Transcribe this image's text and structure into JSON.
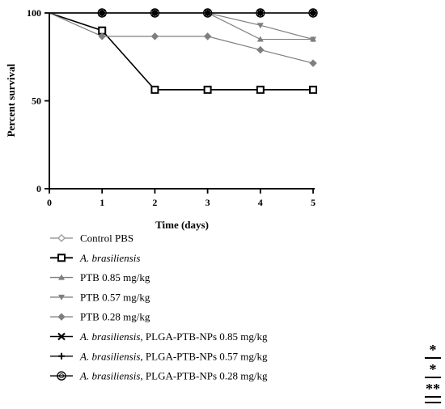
{
  "chart_data": {
    "type": "line",
    "title": "",
    "xlabel": "Time (days)",
    "ylabel": "Percent survival",
    "xlim": [
      0,
      5
    ],
    "ylim": [
      0,
      100
    ],
    "x_ticks": [
      "0",
      "1",
      "2",
      "3",
      "4",
      "5"
    ],
    "y_ticks": [
      "0",
      "50",
      "100"
    ],
    "grid": false,
    "legend_position": "bottom",
    "series": [
      {
        "name": "Control  PBS",
        "marker": "diamond-open",
        "color": "#9e9e9e",
        "x": [
          0,
          1,
          2,
          3,
          4,
          5
        ],
        "y": [
          100,
          100,
          100,
          100,
          100,
          100
        ]
      },
      {
        "name": "A. brasiliensis",
        "marker": "square-open",
        "color": "#000000",
        "x": [
          0,
          1,
          2,
          3,
          4,
          5
        ],
        "y": [
          100,
          90,
          56.3,
          56.3,
          56.3,
          56.3
        ]
      },
      {
        "name": "PTB 0.85 mg/kg",
        "marker": "triangle-up",
        "color": "#7f7f7f",
        "x": [
          0,
          1,
          2,
          3,
          4,
          5
        ],
        "y": [
          100,
          100,
          100,
          100,
          85,
          85
        ]
      },
      {
        "name": "PTB 0.57 mg/kg",
        "marker": "triangle-down",
        "color": "#7f7f7f",
        "x": [
          0,
          1,
          2,
          3,
          4,
          5
        ],
        "y": [
          100,
          100,
          100,
          100,
          93,
          85
        ]
      },
      {
        "name": "PTB 0.28 mg/kg",
        "marker": "diamond",
        "color": "#7f7f7f",
        "x": [
          0,
          1,
          2,
          3,
          4,
          5
        ],
        "y": [
          100,
          86.7,
          86.7,
          86.7,
          79,
          71.4
        ]
      },
      {
        "name": "A. brasiliensis, PLGA-PTB-NPs 0.85 mg/kg",
        "marker": "x",
        "color": "#000000",
        "x": [
          0,
          1,
          2,
          3,
          4,
          5
        ],
        "y": [
          100,
          100,
          100,
          100,
          100,
          100
        ]
      },
      {
        "name": "A. brasiliensis, PLGA-PTB-NPs 0.57 mg/kg",
        "marker": "plus",
        "color": "#000000",
        "x": [
          0,
          1,
          2,
          3,
          4,
          5
        ],
        "y": [
          100,
          100,
          100,
          100,
          100,
          100
        ]
      },
      {
        "name": "A. brasiliensis, PLGA-PTB-NPs 0.28 mg/kg",
        "marker": "circle-open",
        "color": "#000000",
        "x": [
          0,
          1,
          2,
          3,
          4,
          5
        ],
        "y": [
          100,
          100,
          100,
          100,
          100,
          100
        ]
      }
    ],
    "legend": [
      {
        "italic": "",
        "text": "Control  PBS"
      },
      {
        "italic": "A. brasiliensis",
        "text": ""
      },
      {
        "italic": "",
        "text": "PTB 0.85 mg/kg"
      },
      {
        "italic": "",
        "text": "PTB 0.57 mg/kg"
      },
      {
        "italic": "",
        "text": "PTB 0.28 mg/kg"
      },
      {
        "italic": "A. brasiliensis,",
        "text": " PLGA-PTB-NPs 0.85 mg/kg"
      },
      {
        "italic": "A. brasiliensis,",
        "text": " PLGA-PTB-NPs 0.57 mg/kg"
      },
      {
        "italic": "A. brasiliensis,",
        "text": " PLGA-PTB-NPs 0.28 mg/kg"
      }
    ],
    "significance": [
      "*",
      "*",
      "**"
    ]
  }
}
